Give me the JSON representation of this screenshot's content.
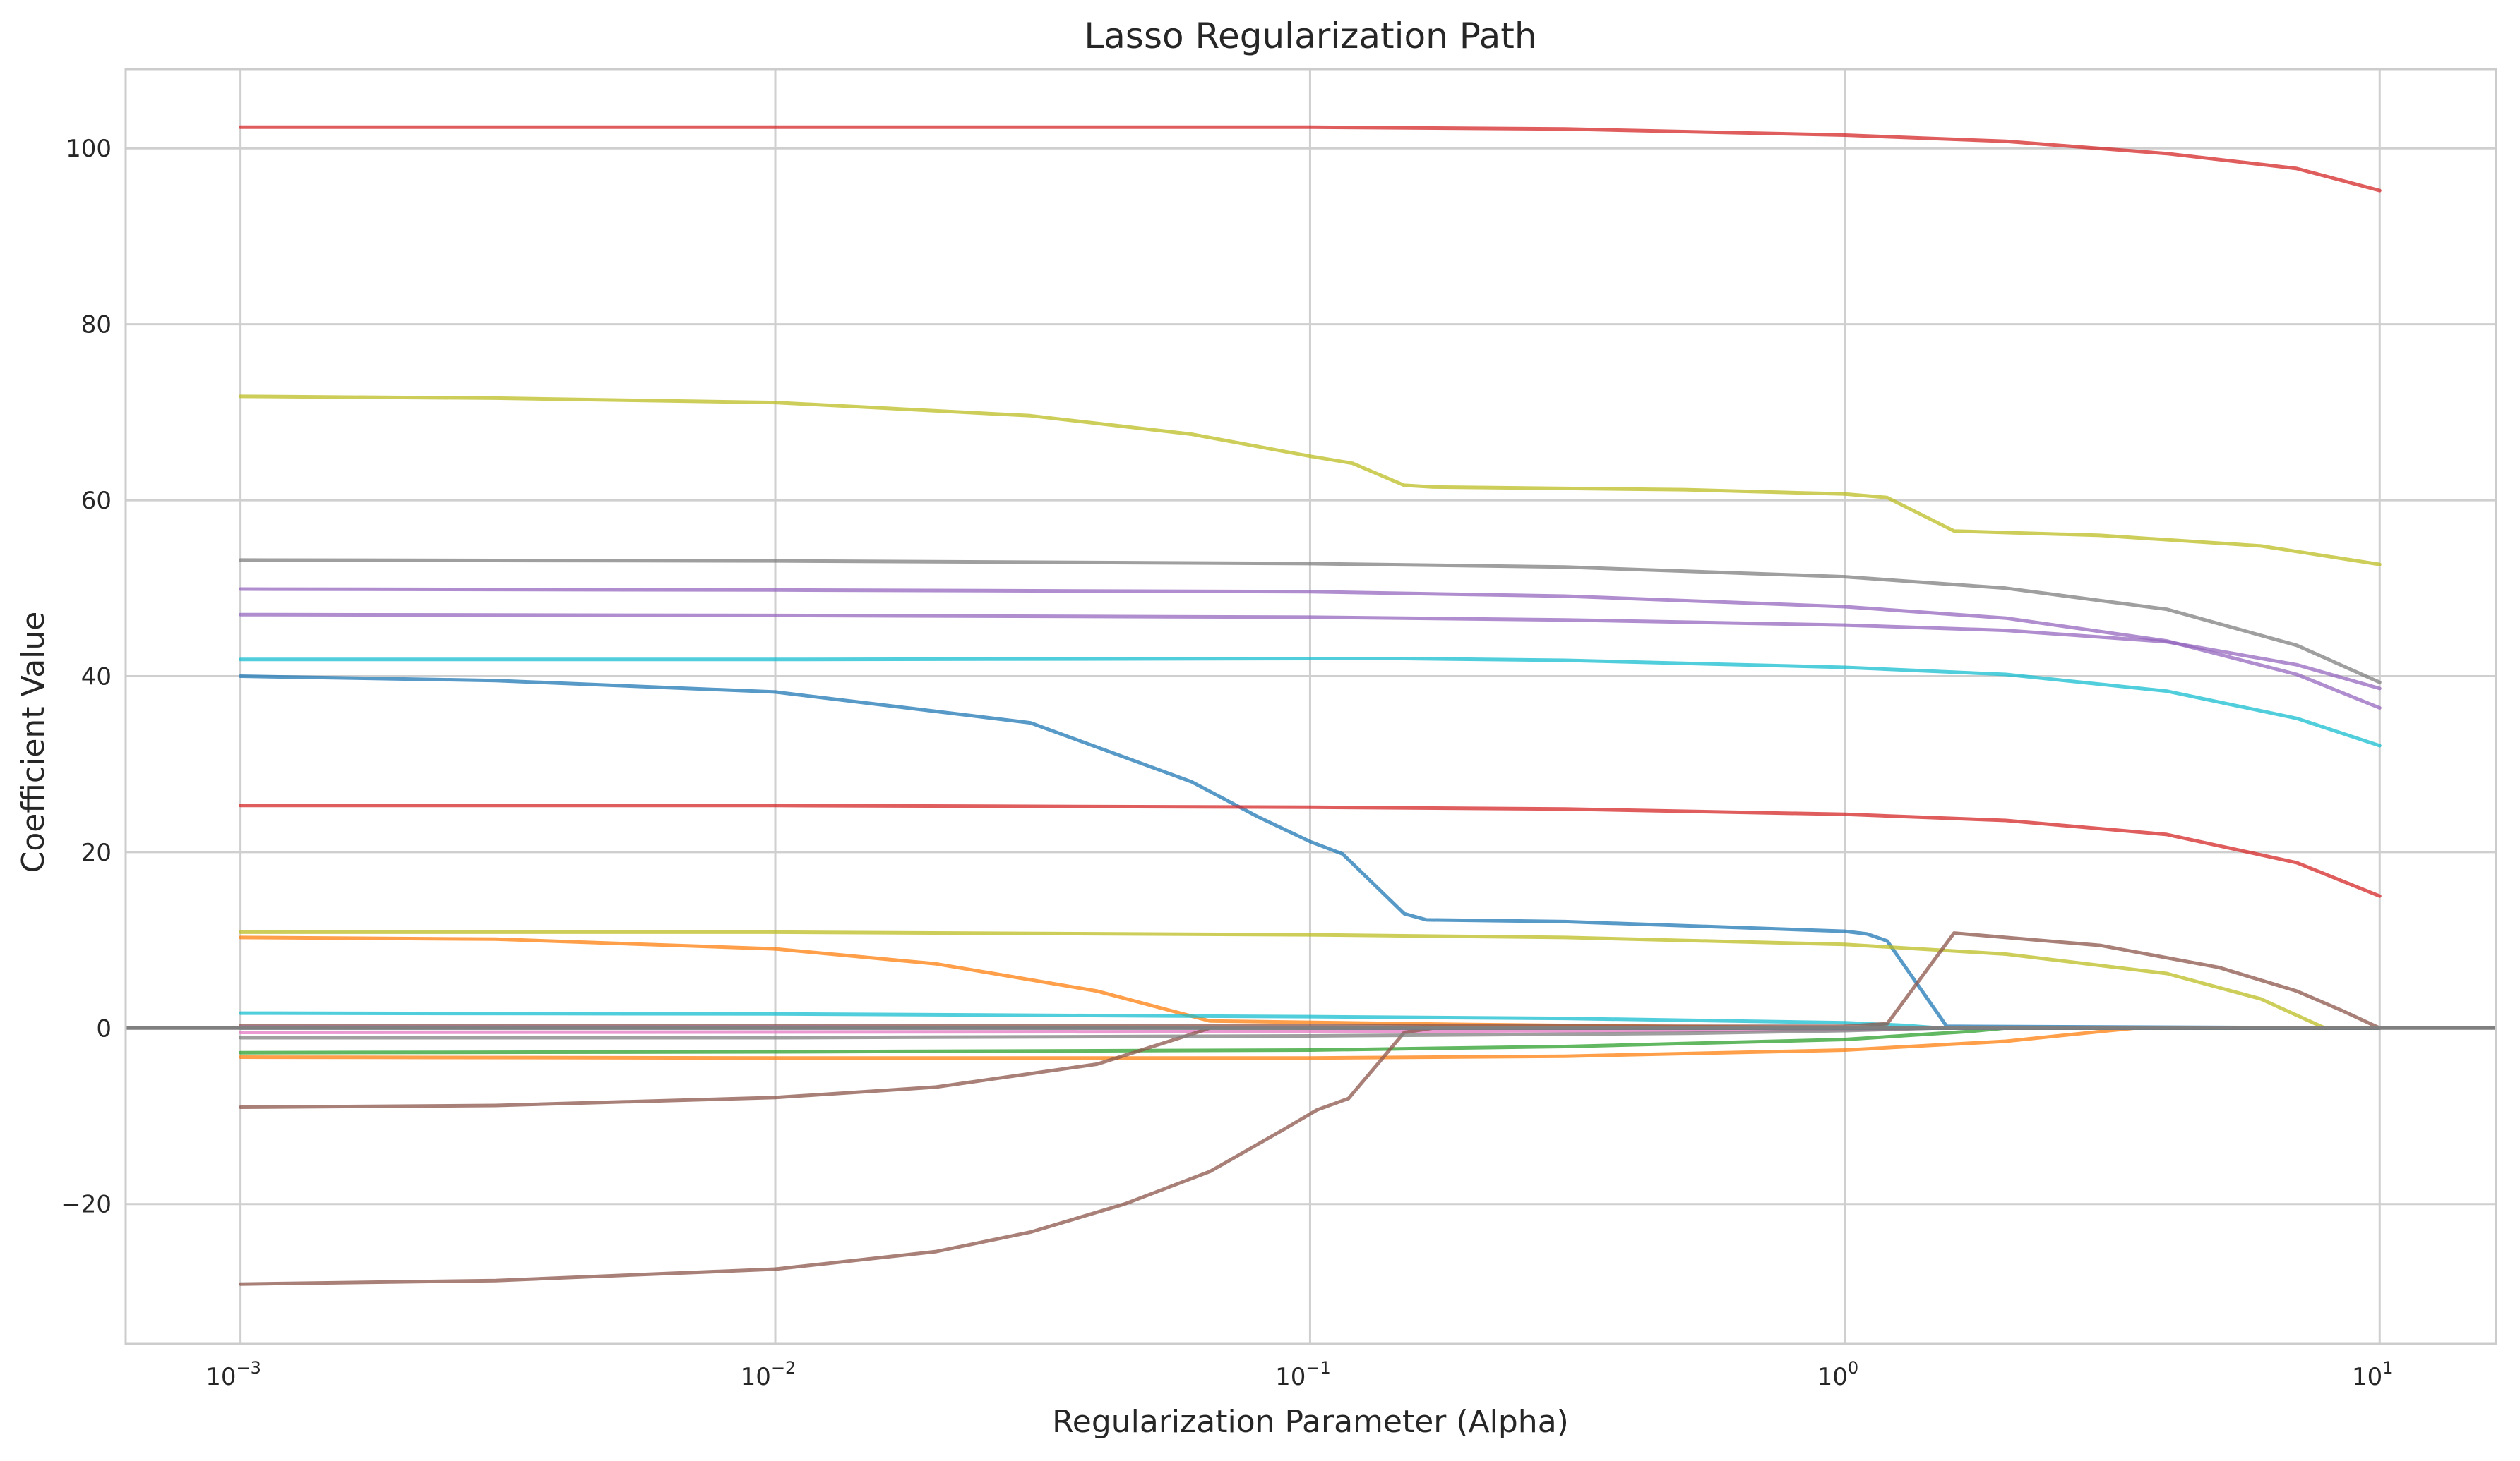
{
  "chart_data": {
    "type": "line",
    "title": "Lasso Regularization Path",
    "xlabel": "Regularization Parameter (Alpha)",
    "ylabel": "Coefficient Value",
    "xscale": "log",
    "xlim": [
      0.00061,
      16.5
    ],
    "ylim": [
      -35.9,
      109
    ],
    "grid": true,
    "legend": "none",
    "reference_line": {
      "y": 0,
      "color": "#7f7f7f"
    },
    "x_ticks": [
      {
        "value": 0.001,
        "base": "10",
        "exp": "−3"
      },
      {
        "value": 0.01,
        "base": "10",
        "exp": "−2"
      },
      {
        "value": 0.1,
        "base": "10",
        "exp": "−1"
      },
      {
        "value": 1,
        "base": "10",
        "exp": "0"
      },
      {
        "value": 10,
        "base": "10",
        "exp": "1"
      }
    ],
    "y_ticks": [
      {
        "value": 100,
        "label": "100"
      },
      {
        "value": 80,
        "label": "80"
      },
      {
        "value": 60,
        "label": "60"
      },
      {
        "value": 40,
        "label": "40"
      },
      {
        "value": 20,
        "label": "20"
      },
      {
        "value": 0,
        "label": "0"
      },
      {
        "value": -20,
        "label": "−20"
      }
    ],
    "series": [
      {
        "color": "#d62728",
        "points": [
          [
            0.001,
            102.4
          ],
          [
            0.01,
            102.4
          ],
          [
            0.1,
            102.4
          ],
          [
            0.3,
            102.2
          ],
          [
            1,
            101.5
          ],
          [
            2,
            100.8
          ],
          [
            4,
            99.4
          ],
          [
            7,
            97.7
          ],
          [
            10,
            95.2
          ]
        ]
      },
      {
        "color": "#bcbd22",
        "points": [
          [
            0.001,
            71.8
          ],
          [
            0.003,
            71.6
          ],
          [
            0.01,
            71.1
          ],
          [
            0.03,
            69.6
          ],
          [
            0.06,
            67.5
          ],
          [
            0.1,
            65
          ],
          [
            0.12,
            64.2
          ],
          [
            0.15,
            61.7
          ],
          [
            0.17,
            61.5
          ],
          [
            0.5,
            61.2
          ],
          [
            1,
            60.7
          ],
          [
            1.2,
            60.3
          ],
          [
            1.6,
            56.5
          ],
          [
            3,
            56
          ],
          [
            6,
            54.8
          ],
          [
            10,
            52.7
          ]
        ]
      },
      {
        "color": "#7f7f7f",
        "points": [
          [
            0.001,
            53.2
          ],
          [
            0.01,
            53.1
          ],
          [
            0.1,
            52.8
          ],
          [
            0.3,
            52.4
          ],
          [
            1,
            51.3
          ],
          [
            2,
            50
          ],
          [
            4,
            47.6
          ],
          [
            7,
            43.5
          ],
          [
            10,
            39.3
          ]
        ]
      },
      {
        "color": "#9467bd",
        "points": [
          [
            0.001,
            49.9
          ],
          [
            0.01,
            49.8
          ],
          [
            0.1,
            49.6
          ],
          [
            0.3,
            49.1
          ],
          [
            1,
            47.9
          ],
          [
            2,
            46.6
          ],
          [
            4,
            44
          ],
          [
            7,
            40.2
          ],
          [
            10,
            36.4
          ]
        ]
      },
      {
        "color": "#9467bd",
        "points": [
          [
            0.001,
            47
          ],
          [
            0.01,
            46.9
          ],
          [
            0.1,
            46.7
          ],
          [
            0.3,
            46.4
          ],
          [
            1,
            45.8
          ],
          [
            2,
            45.2
          ],
          [
            4,
            43.9
          ],
          [
            7,
            41.3
          ],
          [
            10,
            38.6
          ]
        ]
      },
      {
        "color": "#17becf",
        "points": [
          [
            0.001,
            41.9
          ],
          [
            0.01,
            41.9
          ],
          [
            0.1,
            42
          ],
          [
            0.15,
            42
          ],
          [
            0.3,
            41.8
          ],
          [
            1,
            41
          ],
          [
            2,
            40.2
          ],
          [
            4,
            38.3
          ],
          [
            7,
            35.2
          ],
          [
            10,
            32.1
          ]
        ]
      },
      {
        "color": "#1f77b4",
        "points": [
          [
            0.001,
            40
          ],
          [
            0.003,
            39.5
          ],
          [
            0.01,
            38.2
          ],
          [
            0.03,
            34.7
          ],
          [
            0.06,
            28
          ],
          [
            0.08,
            24
          ],
          [
            0.1,
            21.2
          ],
          [
            0.115,
            19.8
          ],
          [
            0.15,
            13
          ],
          [
            0.165,
            12.3
          ],
          [
            0.3,
            12.1
          ],
          [
            1,
            11
          ],
          [
            1.1,
            10.7
          ],
          [
            1.2,
            9.9
          ],
          [
            1.55,
            0.2
          ],
          [
            10,
            0
          ]
        ]
      },
      {
        "color": "#d62728",
        "points": [
          [
            0.001,
            25.3
          ],
          [
            0.01,
            25.3
          ],
          [
            0.1,
            25.1
          ],
          [
            0.3,
            24.9
          ],
          [
            1,
            24.3
          ],
          [
            2,
            23.6
          ],
          [
            4,
            22
          ],
          [
            7,
            18.8
          ],
          [
            10,
            15
          ]
        ]
      },
      {
        "color": "#bcbd22",
        "points": [
          [
            0.001,
            10.9
          ],
          [
            0.01,
            10.9
          ],
          [
            0.1,
            10.6
          ],
          [
            0.3,
            10.3
          ],
          [
            1,
            9.5
          ],
          [
            2,
            8.4
          ],
          [
            4,
            6.2
          ],
          [
            6,
            3.3
          ],
          [
            7.9,
            0
          ],
          [
            10,
            0
          ]
        ]
      },
      {
        "color": "#ff7f0e",
        "points": [
          [
            0.001,
            10.3
          ],
          [
            0.003,
            10.1
          ],
          [
            0.01,
            9
          ],
          [
            0.02,
            7.3
          ],
          [
            0.04,
            4.2
          ],
          [
            0.065,
            0.8
          ],
          [
            0.2,
            0.4
          ],
          [
            1,
            0
          ],
          [
            10,
            0
          ]
        ]
      },
      {
        "color": "#17becf",
        "points": [
          [
            0.001,
            1.7
          ],
          [
            0.01,
            1.6
          ],
          [
            0.1,
            1.3
          ],
          [
            0.3,
            1.1
          ],
          [
            1,
            0.6
          ],
          [
            1.3,
            0.3
          ],
          [
            1.5,
            0
          ],
          [
            10,
            0
          ]
        ]
      },
      {
        "color": "#8c564b",
        "points": [
          [
            0.001,
            0.3
          ],
          [
            0.1,
            0.3
          ],
          [
            0.5,
            0.2
          ],
          [
            1,
            0.2
          ],
          [
            1.2,
            0.5
          ],
          [
            1.6,
            10.8
          ],
          [
            2,
            10.3
          ],
          [
            3,
            9.4
          ],
          [
            5,
            6.9
          ],
          [
            7,
            4.2
          ],
          [
            8.5,
            2
          ],
          [
            10,
            0
          ]
        ]
      },
      {
        "color": "#e377c2",
        "points": [
          [
            0.001,
            -0.5
          ],
          [
            0.1,
            -0.4
          ],
          [
            1,
            -0.2
          ],
          [
            1.5,
            0
          ],
          [
            10,
            0
          ]
        ]
      },
      {
        "color": "#2ca02c",
        "points": [
          [
            0.001,
            -2.8
          ],
          [
            0.01,
            -2.7
          ],
          [
            0.1,
            -2.5
          ],
          [
            0.3,
            -2.1
          ],
          [
            1,
            -1.3
          ],
          [
            1.7,
            -0.4
          ],
          [
            2,
            0
          ],
          [
            10,
            0
          ]
        ]
      },
      {
        "color": "#ff7f0e",
        "points": [
          [
            0.001,
            -3.3
          ],
          [
            0.01,
            -3.4
          ],
          [
            0.1,
            -3.4
          ],
          [
            0.3,
            -3.2
          ],
          [
            1,
            -2.5
          ],
          [
            2,
            -1.5
          ],
          [
            3,
            -0.4
          ],
          [
            3.5,
            0
          ],
          [
            10,
            0
          ]
        ]
      },
      {
        "color": "#8c564b",
        "points": [
          [
            0.001,
            -9
          ],
          [
            0.003,
            -8.8
          ],
          [
            0.01,
            -7.9
          ],
          [
            0.02,
            -6.7
          ],
          [
            0.04,
            -4.1
          ],
          [
            0.06,
            -0.7
          ],
          [
            0.065,
            0
          ],
          [
            10,
            0
          ]
        ]
      },
      {
        "color": "#8c564b",
        "points": [
          [
            0.001,
            -29.1
          ],
          [
            0.003,
            -28.7
          ],
          [
            0.01,
            -27.4
          ],
          [
            0.02,
            -25.4
          ],
          [
            0.03,
            -23.2
          ],
          [
            0.045,
            -20
          ],
          [
            0.065,
            -16.3
          ],
          [
            0.09,
            -11.4
          ],
          [
            0.103,
            -9.3
          ],
          [
            0.118,
            -8
          ],
          [
            0.15,
            -0.5
          ],
          [
            0.17,
            0
          ],
          [
            10,
            0
          ]
        ]
      },
      {
        "color": "#7f7f7f",
        "points": [
          [
            0.001,
            -1.1
          ],
          [
            0.01,
            -1.1
          ],
          [
            0.1,
            -0.9
          ],
          [
            0.5,
            -0.6
          ],
          [
            1,
            -0.3
          ],
          [
            1.5,
            0
          ],
          [
            10,
            0
          ]
        ]
      },
      {
        "color": "#9467bd",
        "points": [
          [
            0.001,
            0.1
          ],
          [
            0.01,
            0.1
          ],
          [
            0.1,
            0
          ],
          [
            10,
            0
          ]
        ]
      },
      {
        "color": "#008080",
        "points": [
          [
            0.001,
            0
          ],
          [
            0.01,
            0
          ],
          [
            1,
            0
          ],
          [
            10,
            0
          ]
        ]
      }
    ]
  }
}
